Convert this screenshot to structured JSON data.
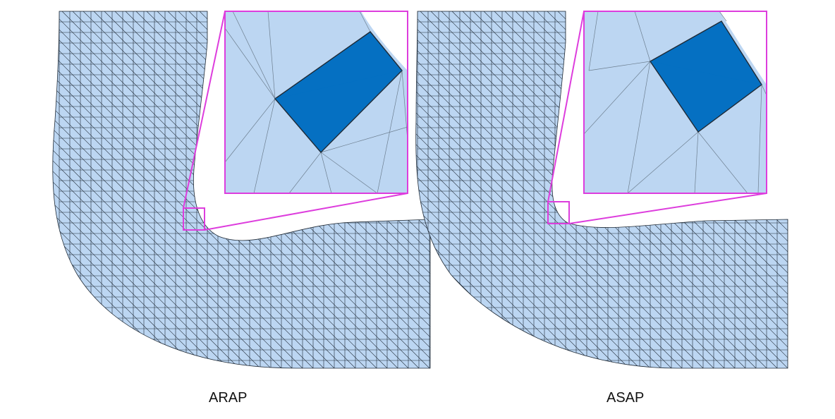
{
  "figure": {
    "panels": [
      {
        "label": "ARAP"
      },
      {
        "label": "ASAP"
      }
    ],
    "colors": {
      "mesh_fill": "#bcd6f2",
      "mesh_line": "#1f2a36",
      "highlight_triangle": "#0570c2",
      "zoom_frame": "#dd3ddd",
      "background": "#ffffff"
    }
  }
}
